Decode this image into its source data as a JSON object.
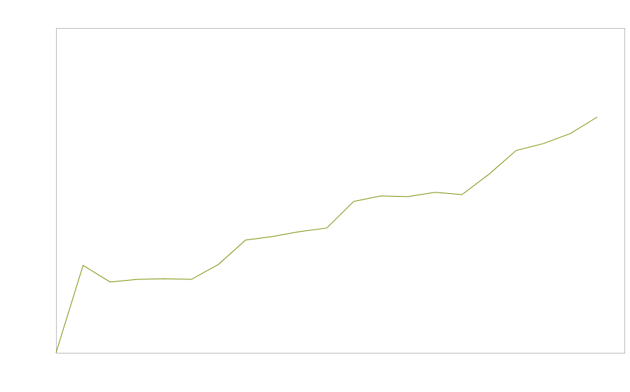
{
  "chart_data": {
    "type": "line",
    "title": "",
    "xlabel": "",
    "ylabel": "",
    "x": [
      0,
      1,
      2,
      3,
      4,
      5,
      6,
      7,
      8,
      9,
      10,
      11,
      12,
      13,
      14,
      15,
      16,
      17,
      18,
      19,
      20
    ],
    "series": [
      {
        "values": [
          0,
          26.9,
          21.8,
          22.6,
          22.8,
          22.6,
          27.2,
          34.7,
          35.8,
          37.3,
          38.4,
          46.6,
          48.3,
          48.1,
          49.4,
          48.7,
          55.0,
          62.3,
          64.4,
          67.5,
          72.6
        ],
        "color": "#7b8b00"
      }
    ],
    "xlim": [
      0,
      21
    ],
    "ylim": [
      0,
      100
    ],
    "grid": false,
    "legend": "none",
    "frame_color": "#bbbbbb"
  }
}
